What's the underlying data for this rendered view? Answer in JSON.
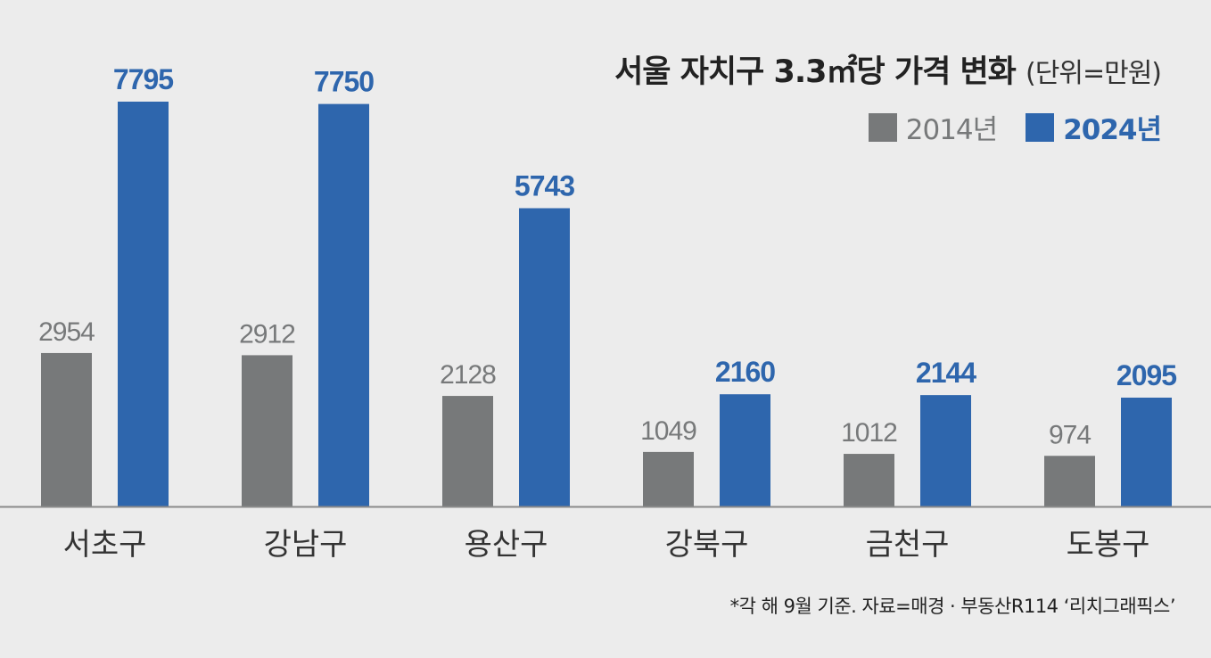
{
  "title": "서울 자치구 3.3㎡당 가격 변화",
  "unit_note": "(단위=만원)",
  "footnote": "*각 해 9월 기준. 자료=매경 · 부동산R114 ‘리치그래픽스’",
  "colors": {
    "background": "#ececec",
    "series_2014": "#77797a",
    "series_2024": "#2e66ad",
    "baseline": "#8a8a8a",
    "category_label": "#333333"
  },
  "chart_data": {
    "type": "bar",
    "title": "서울 자치구 3.3㎡당 가격 변화",
    "unit": "(단위=만원)",
    "categories": [
      "서초구",
      "강남구",
      "용산구",
      "강북구",
      "금천구",
      "도봉구"
    ],
    "series": [
      {
        "name": "2014년",
        "values": [
          2954,
          2912,
          2128,
          1049,
          1012,
          974
        ]
      },
      {
        "name": "2024년",
        "values": [
          7795,
          7750,
          5743,
          2160,
          2144,
          2095
        ]
      }
    ],
    "ylim": [
      0,
      7795
    ],
    "grid": false,
    "legend_position": "top-right"
  }
}
